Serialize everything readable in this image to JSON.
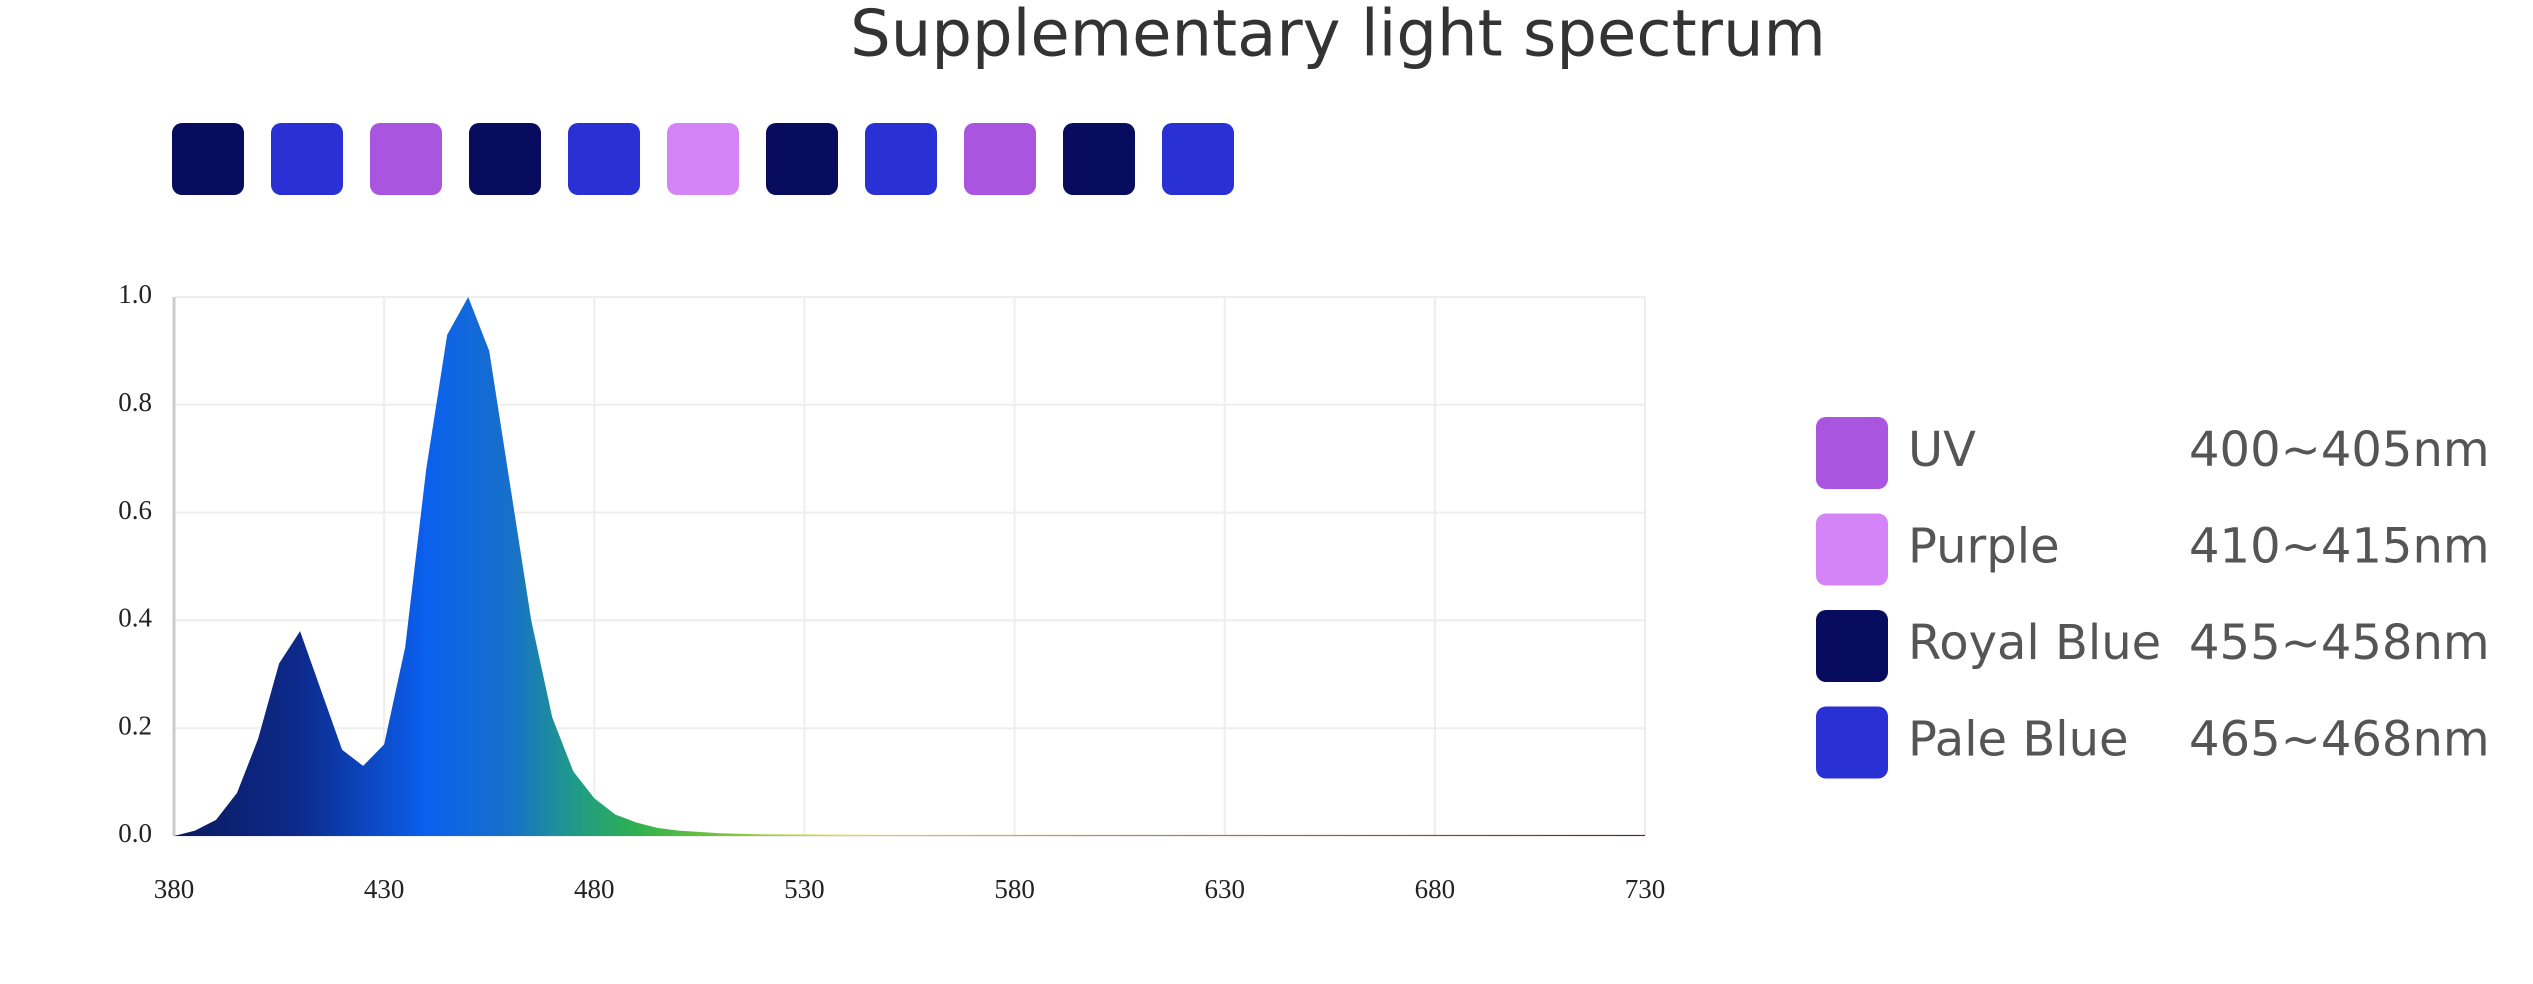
{
  "chart_data": {
    "type": "area",
    "title": "Supplementary light spectrum",
    "led_colors": [
      "#070c5e",
      "#2a31d4",
      "#a955e0",
      "#070c5e",
      "#2a31d4",
      "#d484f7",
      "#070c5e",
      "#2a31d4",
      "#a955e0",
      "#070c5e",
      "#2a31d4"
    ],
    "x": [
      380,
      385,
      390,
      395,
      400,
      405,
      410,
      415,
      420,
      425,
      430,
      435,
      440,
      445,
      450,
      455,
      460,
      465,
      470,
      475,
      480,
      485,
      490,
      495,
      500,
      510,
      520,
      550,
      600,
      650,
      700,
      730
    ],
    "values": [
      0.0,
      0.01,
      0.03,
      0.08,
      0.18,
      0.32,
      0.38,
      0.27,
      0.16,
      0.13,
      0.17,
      0.35,
      0.68,
      0.93,
      1.0,
      0.9,
      0.65,
      0.4,
      0.22,
      0.12,
      0.07,
      0.04,
      0.025,
      0.015,
      0.01,
      0.005,
      0.003,
      0.002,
      0.002,
      0.002,
      0.002,
      0.002
    ],
    "gradient_stops": [
      {
        "x": 380,
        "color": "#0b1a5e"
      },
      {
        "x": 410,
        "color": "#0d2a8c"
      },
      {
        "x": 440,
        "color": "#0b60ee"
      },
      {
        "x": 460,
        "color": "#1770c8"
      },
      {
        "x": 475,
        "color": "#1f9a8a"
      },
      {
        "x": 490,
        "color": "#2fb050"
      },
      {
        "x": 540,
        "color": "#e6e020"
      },
      {
        "x": 600,
        "color": "#d88a20"
      },
      {
        "x": 730,
        "color": "#7a1818"
      }
    ],
    "xlim": [
      380,
      730
    ],
    "xticks": [
      380,
      430,
      480,
      530,
      580,
      630,
      680,
      730
    ],
    "ylim": [
      0,
      1
    ],
    "yticks": [
      {
        "value": 0,
        "label": "0.0"
      },
      {
        "value": 0.2,
        "label": "0.2"
      },
      {
        "value": 0.4,
        "label": "0.4"
      },
      {
        "value": 0.6,
        "label": "0.6"
      },
      {
        "value": 0.8,
        "label": "0.8"
      },
      {
        "value": 1,
        "label": "1.0"
      }
    ],
    "grid": true,
    "legend_items": [
      {
        "name": "UV",
        "range": "400~405nm",
        "color": "#a955e0"
      },
      {
        "name": "Purple",
        "range": "410~415nm",
        "color": "#d484f7"
      },
      {
        "name": "Royal Blue",
        "range": "455~458nm",
        "color": "#070c5e"
      },
      {
        "name": "Pale Blue",
        "range": "465~468nm",
        "color": "#2a31d4"
      }
    ]
  }
}
